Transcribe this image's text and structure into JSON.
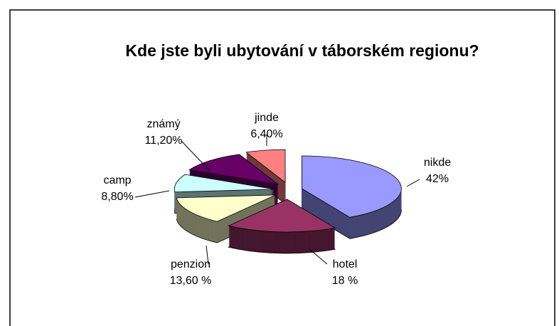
{
  "chart_data": {
    "type": "pie",
    "title": "Kde jste byli ubytování v táborském regionu?",
    "categories": [
      "nikde",
      "hotel",
      "penzion",
      "camp",
      "známý",
      "jinde"
    ],
    "values": [
      42,
      18,
      13.6,
      8.8,
      11.2,
      6.4
    ],
    "value_labels": [
      "42%",
      "18 %",
      "13,60 %",
      "8,80%",
      "11,20%",
      "6,40%"
    ],
    "colors": [
      "#9999ff",
      "#993366",
      "#ffffcc",
      "#ccffff",
      "#660066",
      "#ff8080"
    ]
  }
}
